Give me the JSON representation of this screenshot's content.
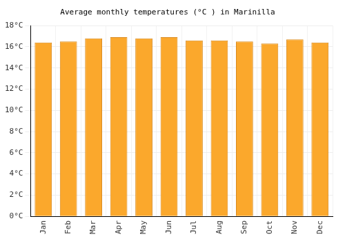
{
  "chart_data": {
    "type": "bar",
    "title": "Average monthly temperatures (°C ) in Marinilla",
    "categories": [
      "Jan",
      "Feb",
      "Mar",
      "Apr",
      "May",
      "Jun",
      "Jul",
      "Aug",
      "Sep",
      "Oct",
      "Nov",
      "Dec"
    ],
    "values": [
      16.4,
      16.5,
      16.8,
      16.9,
      16.8,
      16.9,
      16.6,
      16.6,
      16.5,
      16.3,
      16.7,
      16.4
    ],
    "color": "#fba82c",
    "ylim": [
      0,
      18
    ],
    "yticks": [
      {
        "value": 0,
        "label": "0°C"
      },
      {
        "value": 2,
        "label": "2°C"
      },
      {
        "value": 4,
        "label": "4°C"
      },
      {
        "value": 6,
        "label": "6°C"
      },
      {
        "value": 8,
        "label": "8°C"
      },
      {
        "value": 10,
        "label": "10°C"
      },
      {
        "value": 12,
        "label": "12°C"
      },
      {
        "value": 14,
        "label": "14°C"
      },
      {
        "value": 16,
        "label": "16°C"
      },
      {
        "value": 18,
        "label": "18°C"
      }
    ],
    "grid": true
  }
}
